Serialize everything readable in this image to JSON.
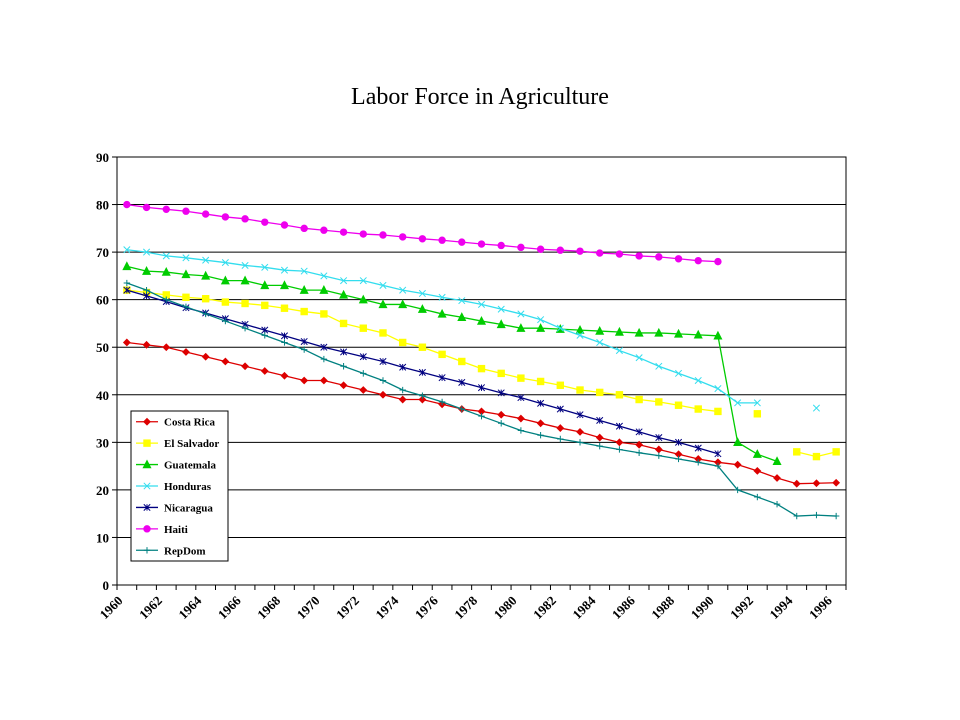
{
  "chart_data": {
    "type": "line",
    "title": "Labor Force in Agriculture",
    "xlabel": "",
    "ylabel": "",
    "xlim": [
      1960,
      1997
    ],
    "ylim": [
      0,
      90
    ],
    "grid": true,
    "legend_position": "bottom-left",
    "x_tick_labels": [
      "1960",
      "1962",
      "1964",
      "1966",
      "1968",
      "1970",
      "1972",
      "1974",
      "1976",
      "1978",
      "1980",
      "1982",
      "1984",
      "1986",
      "1988",
      "1990",
      "1992",
      "1994",
      "1996"
    ],
    "y_tick_labels": [
      "0",
      "10",
      "20",
      "30",
      "40",
      "50",
      "60",
      "70",
      "80",
      "90"
    ],
    "series": [
      {
        "name": "Costa Rica",
        "color": "#dd0000",
        "marker": "diamond",
        "x": [
          1960.5,
          1961.5,
          1962.5,
          1963.5,
          1964.5,
          1965.5,
          1966.5,
          1967.5,
          1968.5,
          1969.5,
          1970.5,
          1971.5,
          1972.5,
          1973.5,
          1974.5,
          1975.5,
          1976.5,
          1977.5,
          1978.5,
          1979.5,
          1980.5,
          1981.5,
          1982.5,
          1983.5,
          1984.5,
          1985.5,
          1986.5,
          1987.5,
          1988.5,
          1989.5,
          1990.5,
          1991.5,
          1992.5,
          1993.5,
          1994.5,
          1995.5,
          1996.5
        ],
        "y": [
          51,
          50.5,
          50,
          49,
          48,
          47,
          46,
          45,
          44,
          43,
          43,
          42,
          41,
          40,
          39,
          39,
          38,
          37,
          36.5,
          35.8,
          35,
          34,
          33,
          32.2,
          31,
          30,
          29.5,
          28.5,
          27.5,
          26.5,
          25.8,
          25.3,
          24,
          22.5,
          21.3,
          21.4,
          21.5
        ]
      },
      {
        "name": "El Salvador",
        "color": "#ffff00",
        "marker": "square",
        "x": [
          1960.5,
          1961.5,
          1962.5,
          1963.5,
          1964.5,
          1965.5,
          1966.5,
          1967.5,
          1968.5,
          1969.5,
          1970.5,
          1971.5,
          1972.5,
          1973.5,
          1974.5,
          1975.5,
          1976.5,
          1977.5,
          1978.5,
          1979.5,
          1980.5,
          1981.5,
          1982.5,
          1983.5,
          1984.5,
          1985.5,
          1986.5,
          1987.5,
          1988.5,
          1989.5,
          1990.5
        ],
        "y": [
          62,
          61.5,
          61,
          60.5,
          60.2,
          59.5,
          59.2,
          58.8,
          58.2,
          57.5,
          57,
          55,
          54,
          53,
          51,
          50,
          48.5,
          47,
          45.5,
          44.5,
          43.5,
          42.8,
          42,
          41,
          40.5,
          40,
          39,
          38.5,
          37.8,
          37,
          36.5
        ],
        "segments": [
          {
            "x": [
              1992.5
            ],
            "y": [
              36
            ]
          },
          {
            "x": [
              1994.5,
              1995.5,
              1996.5
            ],
            "y": [
              28,
              27,
              28
            ]
          }
        ]
      },
      {
        "name": "Guatemala",
        "color": "#00cc00",
        "marker": "triangle",
        "x": [
          1960.5,
          1961.5,
          1962.5,
          1963.5,
          1964.5,
          1965.5,
          1966.5,
          1967.5,
          1968.5,
          1969.5,
          1970.5,
          1971.5,
          1972.5,
          1973.5,
          1974.5,
          1975.5,
          1976.5,
          1977.5,
          1978.5,
          1979.5,
          1980.5,
          1981.5,
          1982.5,
          1983.5,
          1984.5,
          1985.5,
          1986.5,
          1987.5,
          1988.5,
          1989.5,
          1990.5,
          1991.5,
          1992.5,
          1993.5
        ],
        "y": [
          67,
          66,
          65.8,
          65.3,
          65,
          64,
          64,
          63,
          63,
          62,
          62,
          61,
          60,
          59,
          59,
          58,
          57,
          56.3,
          55.5,
          54.8,
          54,
          54,
          53.8,
          53.6,
          53.4,
          53.2,
          53,
          53,
          52.8,
          52.6,
          52.4,
          30,
          27.5,
          26
        ]
      },
      {
        "name": "Honduras",
        "color": "#33ddee",
        "marker": "x",
        "x": [
          1960.5,
          1961.5,
          1962.5,
          1963.5,
          1964.5,
          1965.5,
          1966.5,
          1967.5,
          1968.5,
          1969.5,
          1970.5,
          1971.5,
          1972.5,
          1973.5,
          1974.5,
          1975.5,
          1976.5,
          1977.5,
          1978.5,
          1979.5,
          1980.5,
          1981.5,
          1982.5,
          1983.5,
          1984.5,
          1985.5,
          1986.5,
          1987.5,
          1988.5,
          1989.5,
          1990.5,
          1991.5,
          1992.5
        ],
        "y": [
          70.5,
          70,
          69.2,
          68.8,
          68.3,
          67.8,
          67.2,
          66.8,
          66.2,
          66,
          65,
          64,
          64,
          63,
          62,
          61.3,
          60.5,
          59.8,
          59,
          58,
          57,
          55.8,
          54,
          52.5,
          51,
          49.3,
          47.8,
          46,
          44.5,
          43,
          41.3,
          38.3,
          38.3
        ],
        "segments": [
          {
            "x": [
              1995.5
            ],
            "y": [
              37.2
            ]
          }
        ]
      },
      {
        "name": "Nicaragua",
        "color": "#000080",
        "marker": "star",
        "x": [
          1960.5,
          1961.5,
          1962.5,
          1963.5,
          1964.5,
          1965.5,
          1966.5,
          1967.5,
          1968.5,
          1969.5,
          1970.5,
          1971.5,
          1972.5,
          1973.5,
          1974.5,
          1975.5,
          1976.5,
          1977.5,
          1978.5,
          1979.5,
          1980.5,
          1981.5,
          1982.5,
          1983.5,
          1984.5,
          1985.5,
          1986.5,
          1987.5,
          1988.5,
          1989.5,
          1990.5
        ],
        "y": [
          62,
          60.8,
          59.6,
          58.3,
          57.2,
          56,
          54.8,
          53.6,
          52.4,
          51.2,
          50,
          49,
          48,
          47,
          45.8,
          44.7,
          43.6,
          42.6,
          41.5,
          40.4,
          39.4,
          38.2,
          37,
          35.8,
          34.6,
          33.4,
          32.2,
          31,
          30,
          28.8,
          27.6
        ]
      },
      {
        "name": "Haiti",
        "color": "#ee00ee",
        "marker": "circle",
        "x": [
          1960.5,
          1961.5,
          1962.5,
          1963.5,
          1964.5,
          1965.5,
          1966.5,
          1967.5,
          1968.5,
          1969.5,
          1970.5,
          1971.5,
          1972.5,
          1973.5,
          1974.5,
          1975.5,
          1976.5,
          1977.5,
          1978.5,
          1979.5,
          1980.5,
          1981.5,
          1982.5,
          1983.5,
          1984.5,
          1985.5,
          1986.5,
          1987.5,
          1988.5,
          1989.5,
          1990.5
        ],
        "y": [
          80,
          79.4,
          79,
          78.6,
          78,
          77.4,
          77,
          76.3,
          75.7,
          75,
          74.6,
          74.2,
          73.8,
          73.6,
          73.2,
          72.8,
          72.5,
          72.1,
          71.7,
          71.4,
          71,
          70.6,
          70.4,
          70.2,
          69.8,
          69.6,
          69.2,
          69,
          68.6,
          68.2,
          68
        ]
      },
      {
        "name": "RepDom",
        "color": "#008080",
        "marker": "plus",
        "x": [
          1960.5,
          1961.5,
          1962.5,
          1963.5,
          1964.5,
          1965.5,
          1966.5,
          1967.5,
          1968.5,
          1969.5,
          1970.5,
          1971.5,
          1972.5,
          1973.5,
          1974.5,
          1975.5,
          1976.5,
          1977.5,
          1978.5,
          1979.5,
          1980.5,
          1981.5,
          1982.5,
          1983.5,
          1984.5,
          1985.5,
          1986.5,
          1987.5,
          1988.5,
          1989.5,
          1990.5,
          1991.5,
          1992.5,
          1993.5,
          1994.5,
          1995.5,
          1996.5
        ],
        "y": [
          63.5,
          62,
          60,
          58.5,
          57,
          55.5,
          54,
          52.5,
          51,
          49.5,
          47.5,
          46,
          44.5,
          43,
          41,
          39.8,
          38.5,
          37,
          35.5,
          34,
          32.5,
          31.5,
          30.7,
          30,
          29.2,
          28.5,
          27.8,
          27.2,
          26.5,
          25.8,
          25,
          20,
          18.5,
          17,
          14.5,
          14.7,
          14.5
        ]
      }
    ]
  }
}
